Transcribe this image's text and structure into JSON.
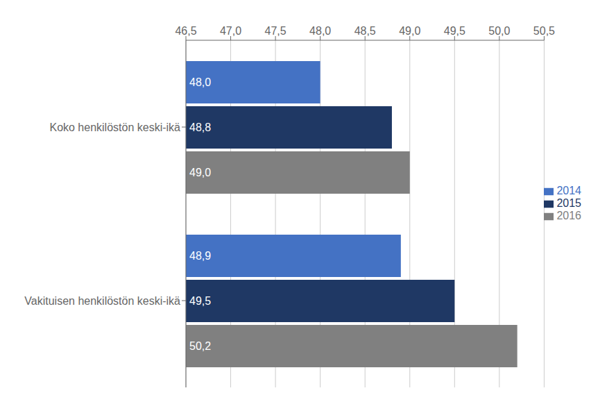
{
  "chart_data": {
    "type": "bar",
    "orientation": "horizontal",
    "categories": [
      "Koko henkilöstön keski-ikä",
      "Vakituisen henkilöstön keski-ikä"
    ],
    "series": [
      {
        "name": "2014",
        "color": "#4472C4",
        "values": [
          48.0,
          48.9
        ],
        "value_labels": [
          "48,0",
          "48,9"
        ]
      },
      {
        "name": "2015",
        "color": "#1F3864",
        "values": [
          48.8,
          49.5
        ],
        "value_labels": [
          "48,8",
          "49,5"
        ]
      },
      {
        "name": "2016",
        "color": "#808080",
        "values": [
          49.0,
          50.2
        ],
        "value_labels": [
          "49,0",
          "50,2"
        ]
      }
    ],
    "xlim": [
      46.5,
      50.5
    ],
    "xticks": [
      {
        "value": 46.5,
        "label": "46,5"
      },
      {
        "value": 47.0,
        "label": "47,0"
      },
      {
        "value": 47.5,
        "label": "47,5"
      },
      {
        "value": 48.0,
        "label": "48,0"
      },
      {
        "value": 48.5,
        "label": "48,5"
      },
      {
        "value": 49.0,
        "label": "49,0"
      },
      {
        "value": 49.5,
        "label": "49,5"
      },
      {
        "value": 50.0,
        "label": "50,0"
      },
      {
        "value": 50.5,
        "label": "50,5"
      }
    ],
    "grid": true,
    "legend": "right",
    "data_labels": true
  }
}
